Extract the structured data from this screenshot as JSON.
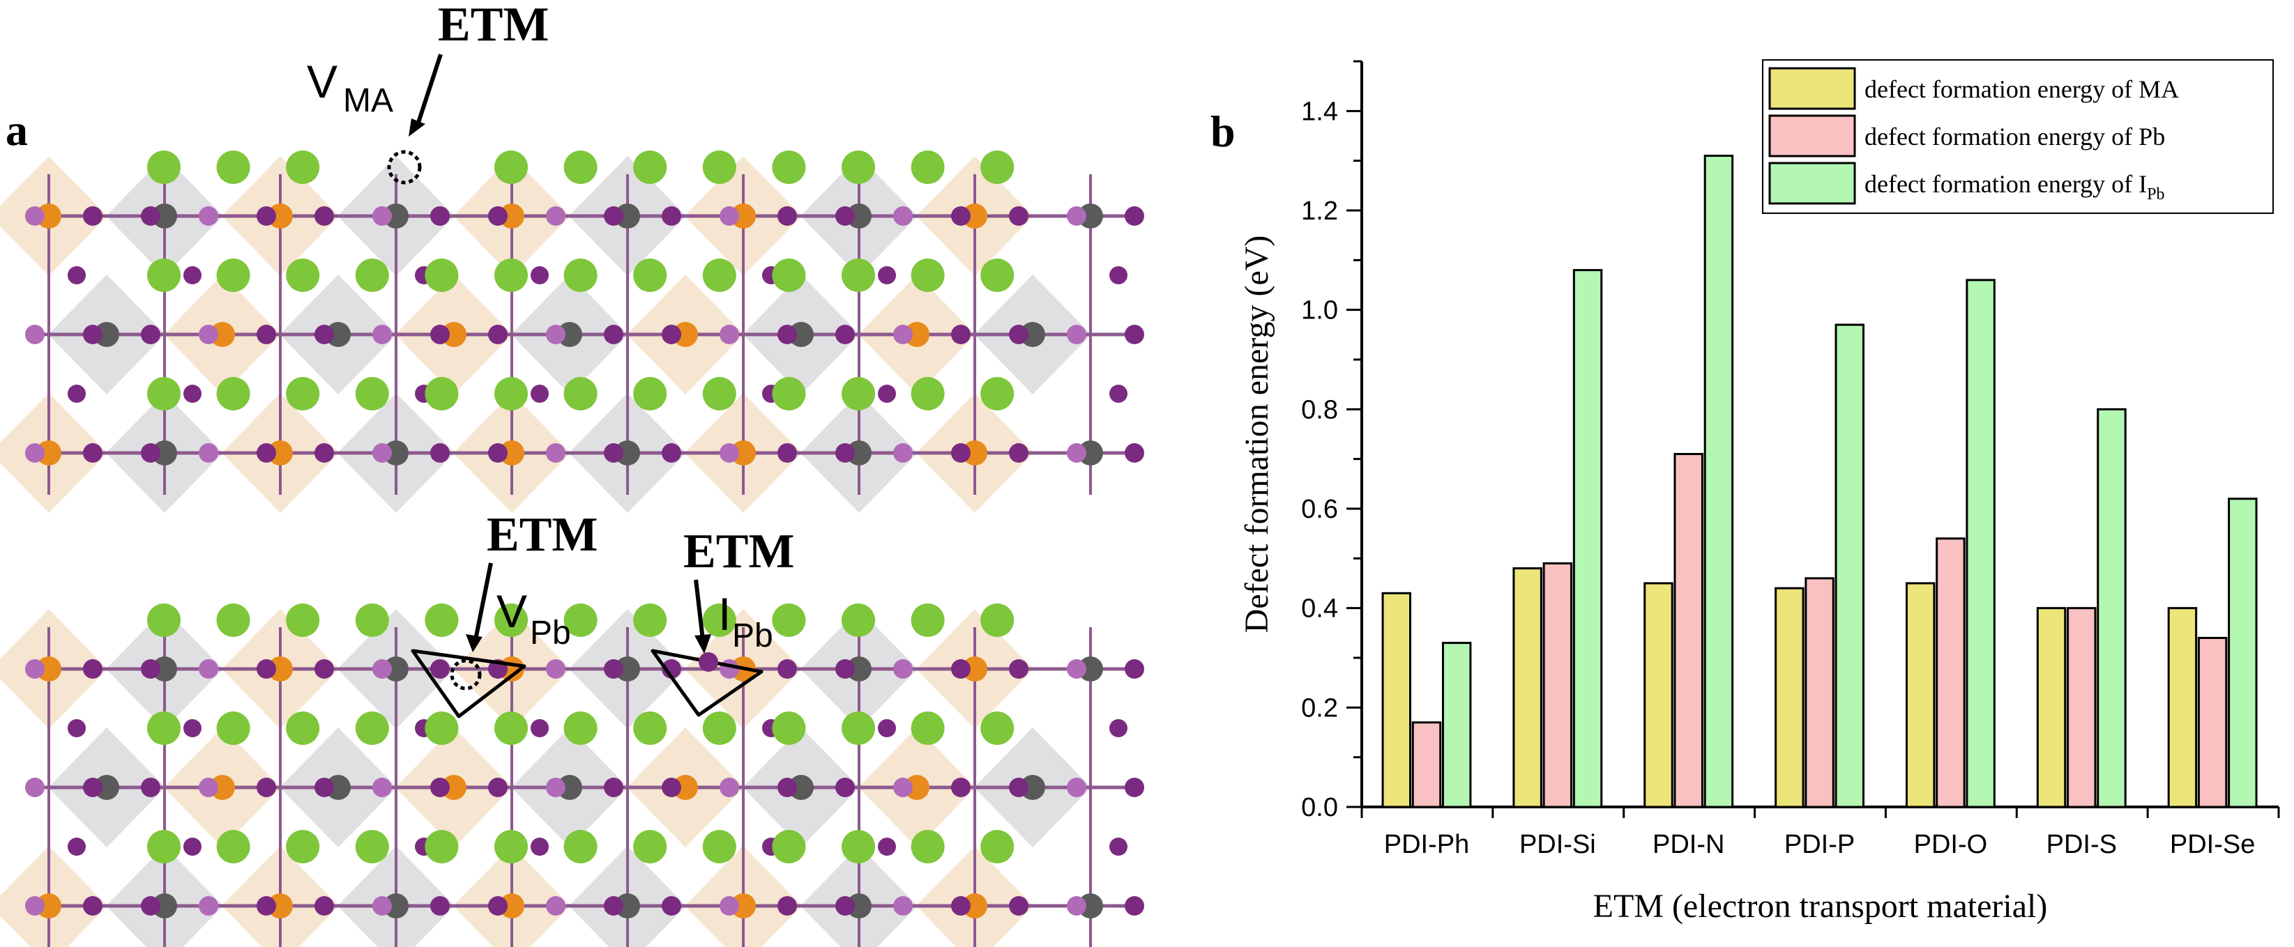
{
  "panel_a": {
    "letter": "a",
    "etm_label": "ETM",
    "vacancy_ma": {
      "main": "V",
      "sub": "MA"
    },
    "vacancy_pb": {
      "main": "V",
      "sub": "Pb"
    },
    "interstitial_pb": {
      "main": "I",
      "sub": "Pb"
    },
    "colors": {
      "cation": "#7ec63a",
      "iodine": "#7a2a80",
      "iodine_light": "#b06ab8",
      "pb_orange": "#e98a1c",
      "pb_gray": "#5a5a5a",
      "octa_orange": "#f3dcc0",
      "octa_gray": "#d6d6d8"
    }
  },
  "panel_b": {
    "letter": "b"
  },
  "chart_data": {
    "type": "bar",
    "title": "",
    "xlabel": "ETM (electron transport material)",
    "ylabel": "Defect formation energy (eV)",
    "ylim": [
      0,
      1.5
    ],
    "yticks": [
      "0.0",
      "0.2",
      "0.4",
      "0.6",
      "0.8",
      "1.0",
      "1.2",
      "1.4"
    ],
    "categories": [
      "PDI-Ph",
      "PDI-Si",
      "PDI-N",
      "PDI-P",
      "PDI-O",
      "PDI-S",
      "PDI-Se"
    ],
    "series": [
      {
        "name": "defect formation energy of MA",
        "label_main": "defect formation energy of MA",
        "label_sub": "",
        "color": "#ece57a",
        "values": [
          0.43,
          0.48,
          0.45,
          0.44,
          0.45,
          0.4,
          0.4
        ]
      },
      {
        "name": "defect formation energy of Pb",
        "label_main": "defect formation energy of Pb",
        "label_sub": "",
        "color": "#f9c1c1",
        "values": [
          0.17,
          0.49,
          0.71,
          0.46,
          0.54,
          0.4,
          0.34
        ]
      },
      {
        "name": "defect formation energy of I_Pb",
        "label_main": "defect formation energy of I",
        "label_sub": "Pb",
        "color": "#b3f7b3",
        "values": [
          0.33,
          1.08,
          1.31,
          0.97,
          1.06,
          0.8,
          0.62
        ]
      }
    ],
    "legend_position": "top-right"
  }
}
